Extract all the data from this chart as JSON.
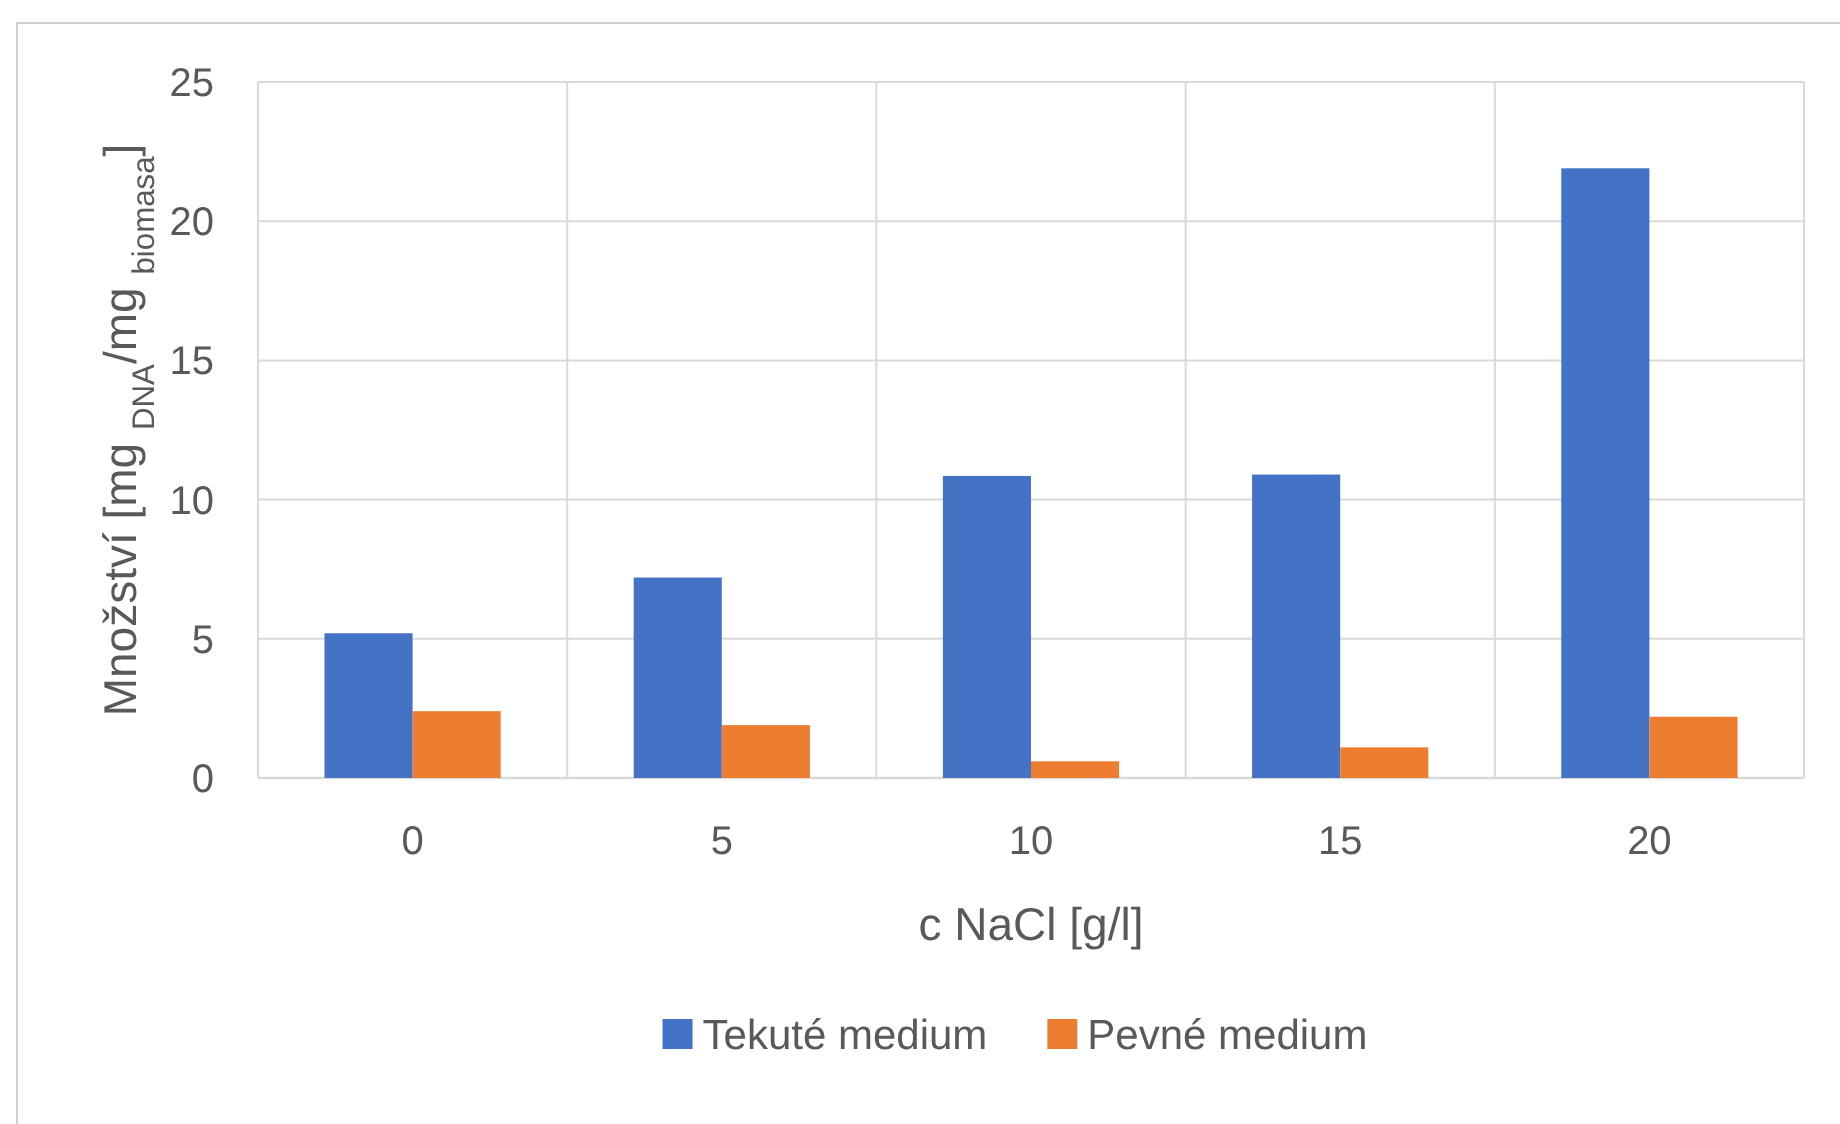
{
  "chart_data": {
    "type": "bar",
    "xlabel": "c NaCl [g/l]",
    "ylabel": "Množství [mg $_{DNA}$/mg $_{biomasa}$]",
    "categories": [
      "0",
      "5",
      "10",
      "15",
      "20"
    ],
    "series": [
      {
        "name": "Tekuté medium",
        "color": "#4472c4",
        "values": [
          5.2,
          7.2,
          10.85,
          10.9,
          21.9
        ]
      },
      {
        "name": "Pevné medium",
        "color": "#ed7d31",
        "values": [
          2.4,
          1.9,
          0.6,
          1.1,
          2.2
        ]
      }
    ],
    "ylim": [
      0,
      25
    ],
    "yticks": [
      0,
      5,
      10,
      15,
      20,
      25
    ],
    "grid": true,
    "legend": "bottom"
  }
}
